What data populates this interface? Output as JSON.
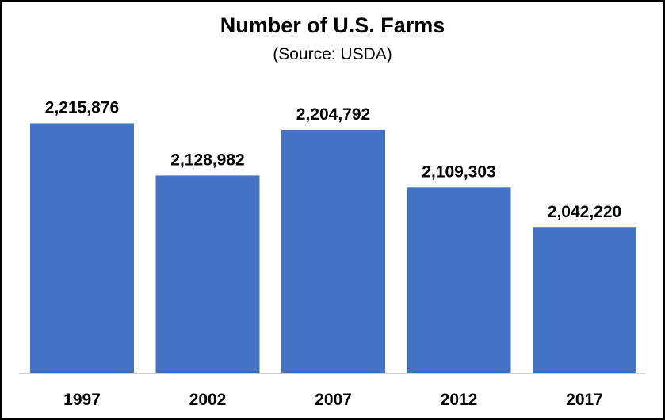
{
  "chart_data": {
    "type": "bar",
    "title": "Number of U.S. Farms",
    "subtitle": "(Source: USDA)",
    "xlabel": "",
    "ylabel": "",
    "categories": [
      "1997",
      "2002",
      "2007",
      "2012",
      "2017"
    ],
    "values": [
      2215876,
      2128982,
      2204792,
      2109303,
      2042220
    ],
    "value_labels": [
      "2,215,876",
      "2,128,982",
      "2,204,792",
      "2,109,303",
      "2,042,220"
    ],
    "ylim": [
      1800000,
      2260000
    ],
    "bar_color": "#4472C4",
    "grid": false,
    "legend": "none"
  }
}
